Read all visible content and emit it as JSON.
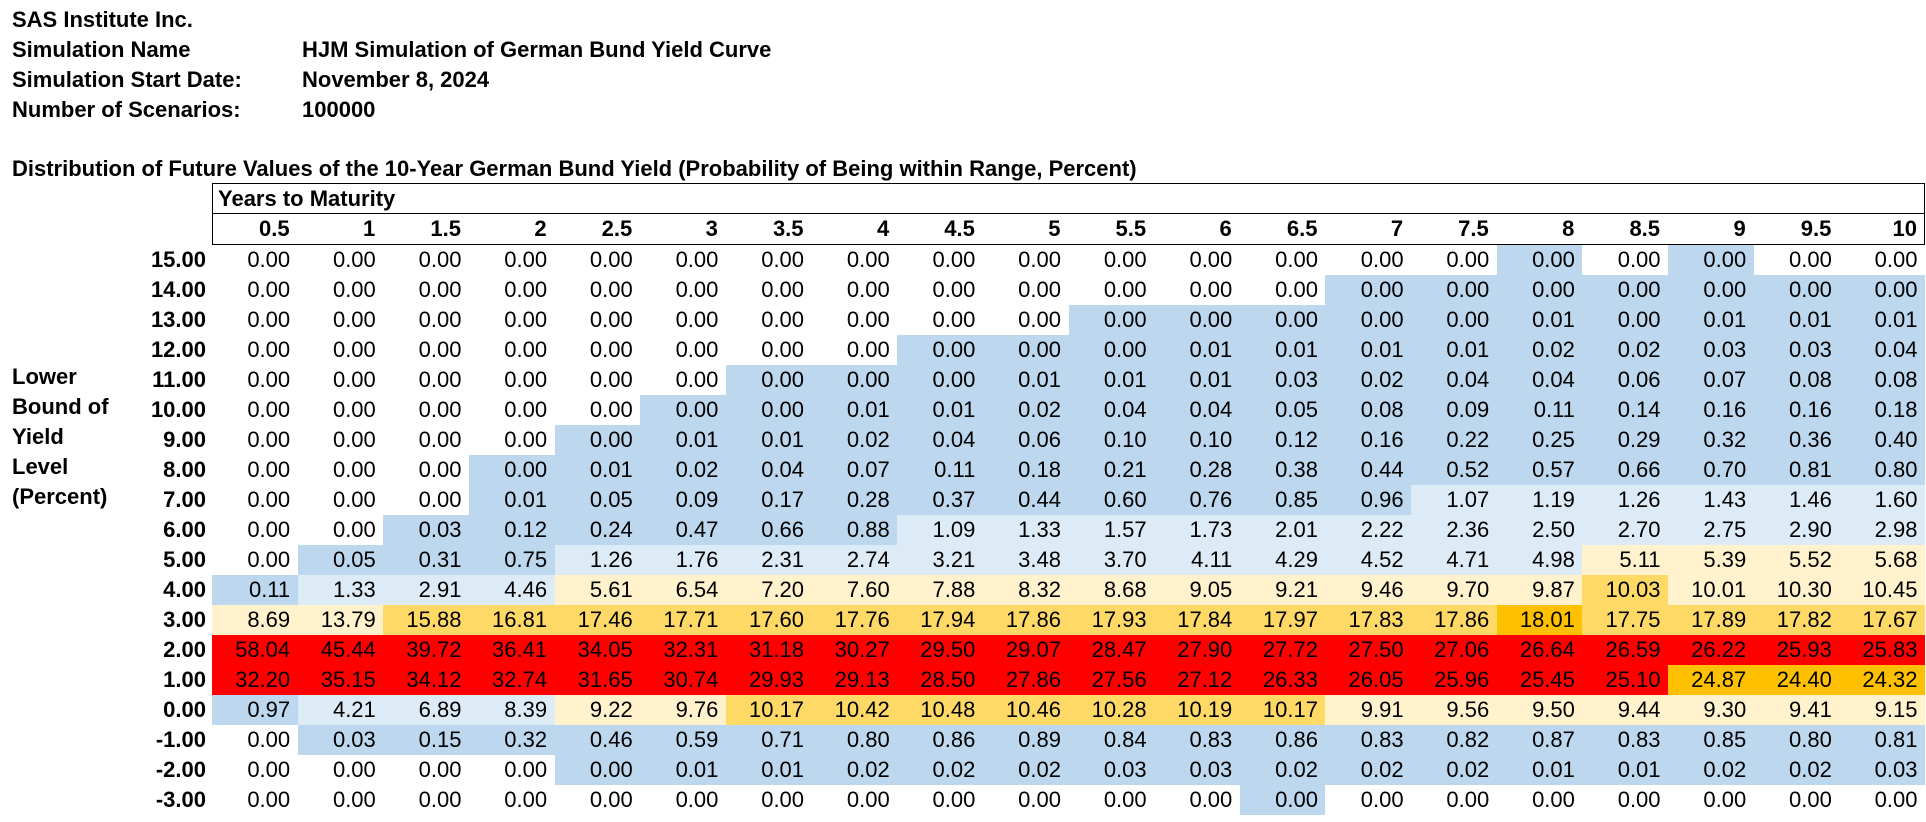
{
  "meta": {
    "company": "SAS Institute Inc.",
    "sim_name_label": "Simulation Name",
    "sim_name": "HJM Simulation of German Bund Yield Curve",
    "start_label": "Simulation Start Date:",
    "start_date": "November 8, 2024",
    "scenarios_label": "Number of Scenarios:",
    "scenarios": "100000"
  },
  "table": {
    "title": "Distribution of Future Values of the 10-Year German Bund Yield (Probability of Being within Range, Percent)",
    "maturity_header": "Years to Maturity",
    "y_label_lines": [
      "Lower",
      "Bound of",
      "Yield",
      "Level",
      "(Percent)"
    ],
    "maturities": [
      "0.5",
      "1",
      "1.5",
      "2",
      "2.5",
      "3",
      "3.5",
      "4",
      "4.5",
      "5",
      "5.5",
      "6",
      "6.5",
      "7",
      "7.5",
      "8",
      "8.5",
      "9",
      "9.5",
      "10"
    ],
    "colors": {
      "white": "#ffffff",
      "blue": "#bdd7ee",
      "lightblue": "#ddebf7",
      "cream": "#fff2cc",
      "yellow": "#ffd966",
      "orange": "#ffc000",
      "red": "#ff0000"
    },
    "rows": [
      {
        "bound": "15.00",
        "values": [
          "0.00",
          "0.00",
          "0.00",
          "0.00",
          "0.00",
          "0.00",
          "0.00",
          "0.00",
          "0.00",
          "0.00",
          "0.00",
          "0.00",
          "0.00",
          "0.00",
          "0.00",
          "0.00",
          "0.00",
          "0.00",
          "0.00",
          "0.00"
        ],
        "colors": "WWWWWWWWWWWWWWWBWBWW"
      },
      {
        "bound": "14.00",
        "values": [
          "0.00",
          "0.00",
          "0.00",
          "0.00",
          "0.00",
          "0.00",
          "0.00",
          "0.00",
          "0.00",
          "0.00",
          "0.00",
          "0.00",
          "0.00",
          "0.00",
          "0.00",
          "0.00",
          "0.00",
          "0.00",
          "0.00",
          "0.00"
        ],
        "colors": "WWWWWWWWWWWWWBBBBBBB"
      },
      {
        "bound": "13.00",
        "values": [
          "0.00",
          "0.00",
          "0.00",
          "0.00",
          "0.00",
          "0.00",
          "0.00",
          "0.00",
          "0.00",
          "0.00",
          "0.00",
          "0.00",
          "0.00",
          "0.00",
          "0.00",
          "0.01",
          "0.00",
          "0.01",
          "0.01",
          "0.01"
        ],
        "colors": "WWWWWWWWWWBBBBBBBBBB"
      },
      {
        "bound": "12.00",
        "values": [
          "0.00",
          "0.00",
          "0.00",
          "0.00",
          "0.00",
          "0.00",
          "0.00",
          "0.00",
          "0.00",
          "0.00",
          "0.00",
          "0.01",
          "0.01",
          "0.01",
          "0.01",
          "0.02",
          "0.02",
          "0.03",
          "0.03",
          "0.04"
        ],
        "colors": "WWWWWWWWBBBBBBBBBBBB"
      },
      {
        "bound": "11.00",
        "values": [
          "0.00",
          "0.00",
          "0.00",
          "0.00",
          "0.00",
          "0.00",
          "0.00",
          "0.00",
          "0.00",
          "0.01",
          "0.01",
          "0.01",
          "0.03",
          "0.02",
          "0.04",
          "0.04",
          "0.06",
          "0.07",
          "0.08",
          "0.08"
        ],
        "colors": "WWWWWWBBBBBBBBBBBBBB"
      },
      {
        "bound": "10.00",
        "values": [
          "0.00",
          "0.00",
          "0.00",
          "0.00",
          "0.00",
          "0.00",
          "0.00",
          "0.01",
          "0.01",
          "0.02",
          "0.04",
          "0.04",
          "0.05",
          "0.08",
          "0.09",
          "0.11",
          "0.14",
          "0.16",
          "0.16",
          "0.18"
        ],
        "colors": "WWWWWBBBBBBBBBBBBBBB"
      },
      {
        "bound": "9.00",
        "values": [
          "0.00",
          "0.00",
          "0.00",
          "0.00",
          "0.00",
          "0.01",
          "0.01",
          "0.02",
          "0.04",
          "0.06",
          "0.10",
          "0.10",
          "0.12",
          "0.16",
          "0.22",
          "0.25",
          "0.29",
          "0.32",
          "0.36",
          "0.40"
        ],
        "colors": "WWWWBBBBBBBBBBBBBBBB"
      },
      {
        "bound": "8.00",
        "values": [
          "0.00",
          "0.00",
          "0.00",
          "0.00",
          "0.01",
          "0.02",
          "0.04",
          "0.07",
          "0.11",
          "0.18",
          "0.21",
          "0.28",
          "0.38",
          "0.44",
          "0.52",
          "0.57",
          "0.66",
          "0.70",
          "0.81",
          "0.80"
        ],
        "colors": "WWWBBBBBBBBBBBBBBBBB"
      },
      {
        "bound": "7.00",
        "values": [
          "0.00",
          "0.00",
          "0.00",
          "0.01",
          "0.05",
          "0.09",
          "0.17",
          "0.28",
          "0.37",
          "0.44",
          "0.60",
          "0.76",
          "0.85",
          "0.96",
          "1.07",
          "1.19",
          "1.26",
          "1.43",
          "1.46",
          "1.60"
        ],
        "colors": "WWWBBBBBBBBBBBLLLLLL"
      },
      {
        "bound": "6.00",
        "values": [
          "0.00",
          "0.00",
          "0.03",
          "0.12",
          "0.24",
          "0.47",
          "0.66",
          "0.88",
          "1.09",
          "1.33",
          "1.57",
          "1.73",
          "2.01",
          "2.22",
          "2.36",
          "2.50",
          "2.70",
          "2.75",
          "2.90",
          "2.98"
        ],
        "colors": "WWBBBBBBLLLLLLLLLLLL"
      },
      {
        "bound": "5.00",
        "values": [
          "0.00",
          "0.05",
          "0.31",
          "0.75",
          "1.26",
          "1.76",
          "2.31",
          "2.74",
          "3.21",
          "3.48",
          "3.70",
          "4.11",
          "4.29",
          "4.52",
          "4.71",
          "4.98",
          "5.11",
          "5.39",
          "5.52",
          "5.68"
        ],
        "colors": "WBBBLLLLLLLLLLLLCCCC"
      },
      {
        "bound": "4.00",
        "values": [
          "0.11",
          "1.33",
          "2.91",
          "4.46",
          "5.61",
          "6.54",
          "7.20",
          "7.60",
          "7.88",
          "8.32",
          "8.68",
          "9.05",
          "9.21",
          "9.46",
          "9.70",
          "9.87",
          "10.03",
          "10.01",
          "10.30",
          "10.45"
        ],
        "colors": "BLLLCCCCCCCCCCCCYCCC"
      },
      {
        "bound": "3.00",
        "values": [
          "8.69",
          "13.79",
          "15.88",
          "16.81",
          "17.46",
          "17.71",
          "17.60",
          "17.76",
          "17.94",
          "17.86",
          "17.93",
          "17.84",
          "17.97",
          "17.83",
          "17.86",
          "18.01",
          "17.75",
          "17.89",
          "17.82",
          "17.67"
        ],
        "colors": "CCYYYYYYYYYYYYYOYYYY"
      },
      {
        "bound": "2.00",
        "values": [
          "58.04",
          "45.44",
          "39.72",
          "36.41",
          "34.05",
          "32.31",
          "31.18",
          "30.27",
          "29.50",
          "29.07",
          "28.47",
          "27.90",
          "27.72",
          "27.50",
          "27.06",
          "26.64",
          "26.59",
          "26.22",
          "25.93",
          "25.83"
        ],
        "colors": "RRRRRRRRRRRRRRRRRRRR"
      },
      {
        "bound": "1.00",
        "values": [
          "32.20",
          "35.15",
          "34.12",
          "32.74",
          "31.65",
          "30.74",
          "29.93",
          "29.13",
          "28.50",
          "27.86",
          "27.56",
          "27.12",
          "26.33",
          "26.05",
          "25.96",
          "25.45",
          "25.10",
          "24.87",
          "24.40",
          "24.32"
        ],
        "colors": "RRRRRRRRRRRRRRRRROOO"
      },
      {
        "bound": "0.00",
        "values": [
          "0.97",
          "4.21",
          "6.89",
          "8.39",
          "9.22",
          "9.76",
          "10.17",
          "10.42",
          "10.48",
          "10.46",
          "10.28",
          "10.19",
          "10.17",
          "9.91",
          "9.56",
          "9.50",
          "9.44",
          "9.30",
          "9.41",
          "9.15"
        ],
        "colors": "BLLLCCYYYYYYYCCCCCCC"
      },
      {
        "bound": "-1.00",
        "values": [
          "0.00",
          "0.03",
          "0.15",
          "0.32",
          "0.46",
          "0.59",
          "0.71",
          "0.80",
          "0.86",
          "0.89",
          "0.84",
          "0.83",
          "0.86",
          "0.83",
          "0.82",
          "0.87",
          "0.83",
          "0.85",
          "0.80",
          "0.81"
        ],
        "colors": "WBBBBBBBBBBBBBBBBBBB"
      },
      {
        "bound": "-2.00",
        "values": [
          "0.00",
          "0.00",
          "0.00",
          "0.00",
          "0.00",
          "0.01",
          "0.01",
          "0.02",
          "0.02",
          "0.02",
          "0.03",
          "0.03",
          "0.02",
          "0.02",
          "0.02",
          "0.01",
          "0.01",
          "0.02",
          "0.02",
          "0.03"
        ],
        "colors": "WWWWBBBBBBBBBBBBBBBB"
      },
      {
        "bound": "-3.00",
        "values": [
          "0.00",
          "0.00",
          "0.00",
          "0.00",
          "0.00",
          "0.00",
          "0.00",
          "0.00",
          "0.00",
          "0.00",
          "0.00",
          "0.00",
          "0.00",
          "0.00",
          "0.00",
          "0.00",
          "0.00",
          "0.00",
          "0.00",
          "0.00"
        ],
        "colors": "WWWWWWWWWWWWBWWWWWWW"
      }
    ]
  }
}
